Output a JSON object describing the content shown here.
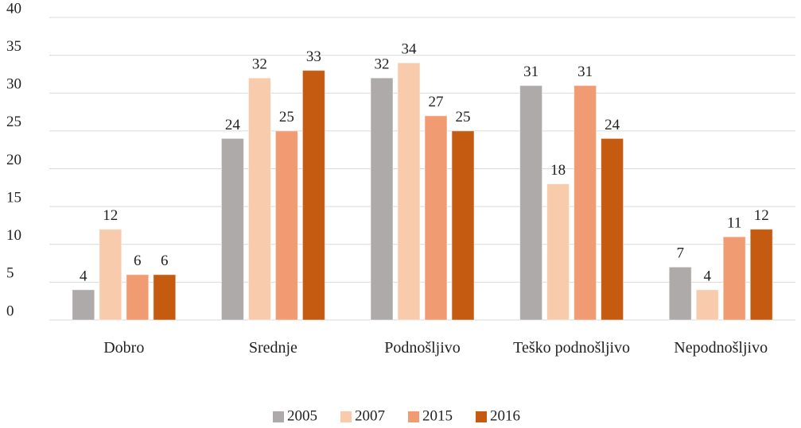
{
  "chart_data": {
    "type": "bar",
    "categories": [
      "Dobro",
      "Srednje",
      "Podnošljivo",
      "Teško podnošljivo",
      "Nepodnošljivo"
    ],
    "series": [
      {
        "name": "2005",
        "color": "#aeaaaa",
        "values": [
          4,
          24,
          32,
          31,
          7
        ]
      },
      {
        "name": "2007",
        "color": "#f8cbad",
        "values": [
          12,
          32,
          34,
          18,
          4
        ]
      },
      {
        "name": "2015",
        "color": "#f19b72",
        "values": [
          6,
          25,
          27,
          31,
          11
        ]
      },
      {
        "name": "2016",
        "color": "#c55a11",
        "values": [
          6,
          33,
          25,
          24,
          12
        ]
      }
    ],
    "ylim": [
      0,
      40
    ],
    "yticks": [
      0,
      5,
      10,
      15,
      20,
      25,
      30,
      35,
      40
    ],
    "grid": true,
    "legend": "bottom"
  }
}
